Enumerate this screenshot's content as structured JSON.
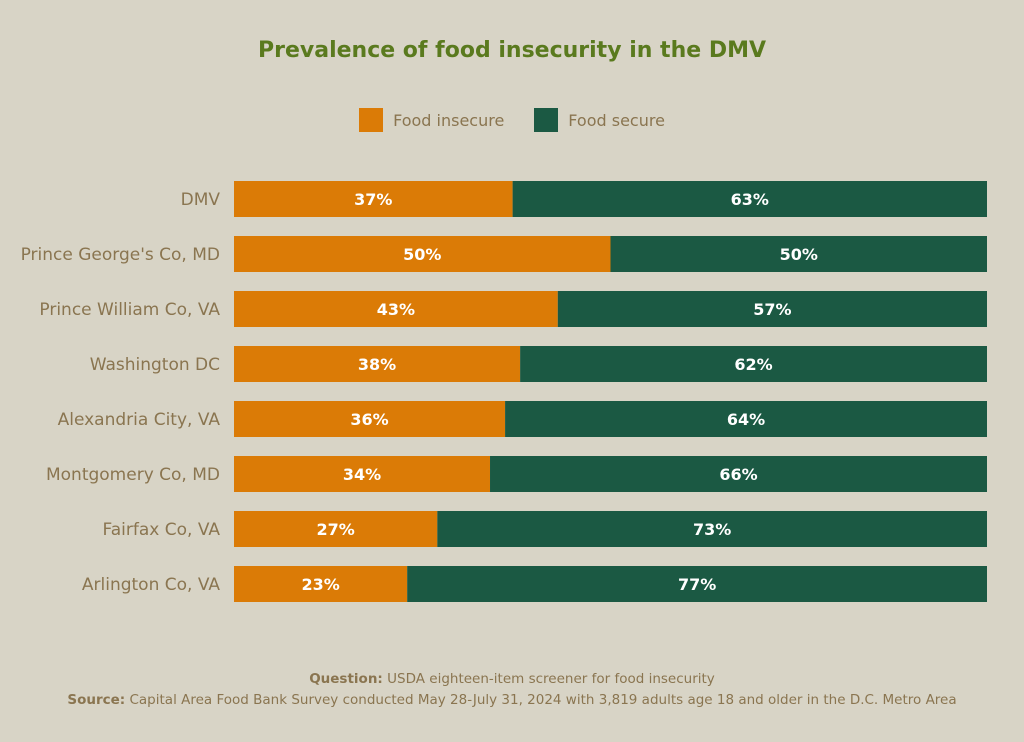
{
  "colors": {
    "food_insecure": "#db7b06",
    "food_secure": "#1b5943",
    "title": "#5a7a1e",
    "label": "#8a7550"
  },
  "footer": {
    "question_label": "Question:",
    "question_text": "USDA eighteen-item screener for food insecurity",
    "source_label": "Source:",
    "source_text": "Capital Area Food Bank Survey conducted May 28-July 31, 2024 with 3,819 adults age 18 and older in the D.C. Metro Area"
  },
  "chart_data": {
    "type": "bar",
    "orientation": "horizontal",
    "stacked": true,
    "title": "Prevalence of food insecurity in the DMV",
    "legend": "top-center",
    "categories": [
      "DMV",
      "Prince George's Co, MD",
      "Prince William Co, VA",
      "Washington DC",
      "Alexandria City, VA",
      "Montgomery Co, MD",
      "Fairfax Co, VA",
      "Arlington Co, VA"
    ],
    "series": [
      {
        "name": "Food insecure",
        "values": [
          37,
          50,
          43,
          38,
          36,
          34,
          27,
          23
        ]
      },
      {
        "name": "Food secure",
        "values": [
          63,
          50,
          57,
          62,
          64,
          66,
          73,
          77
        ]
      }
    ],
    "value_suffix": "%",
    "xlim": [
      0,
      100
    ]
  }
}
